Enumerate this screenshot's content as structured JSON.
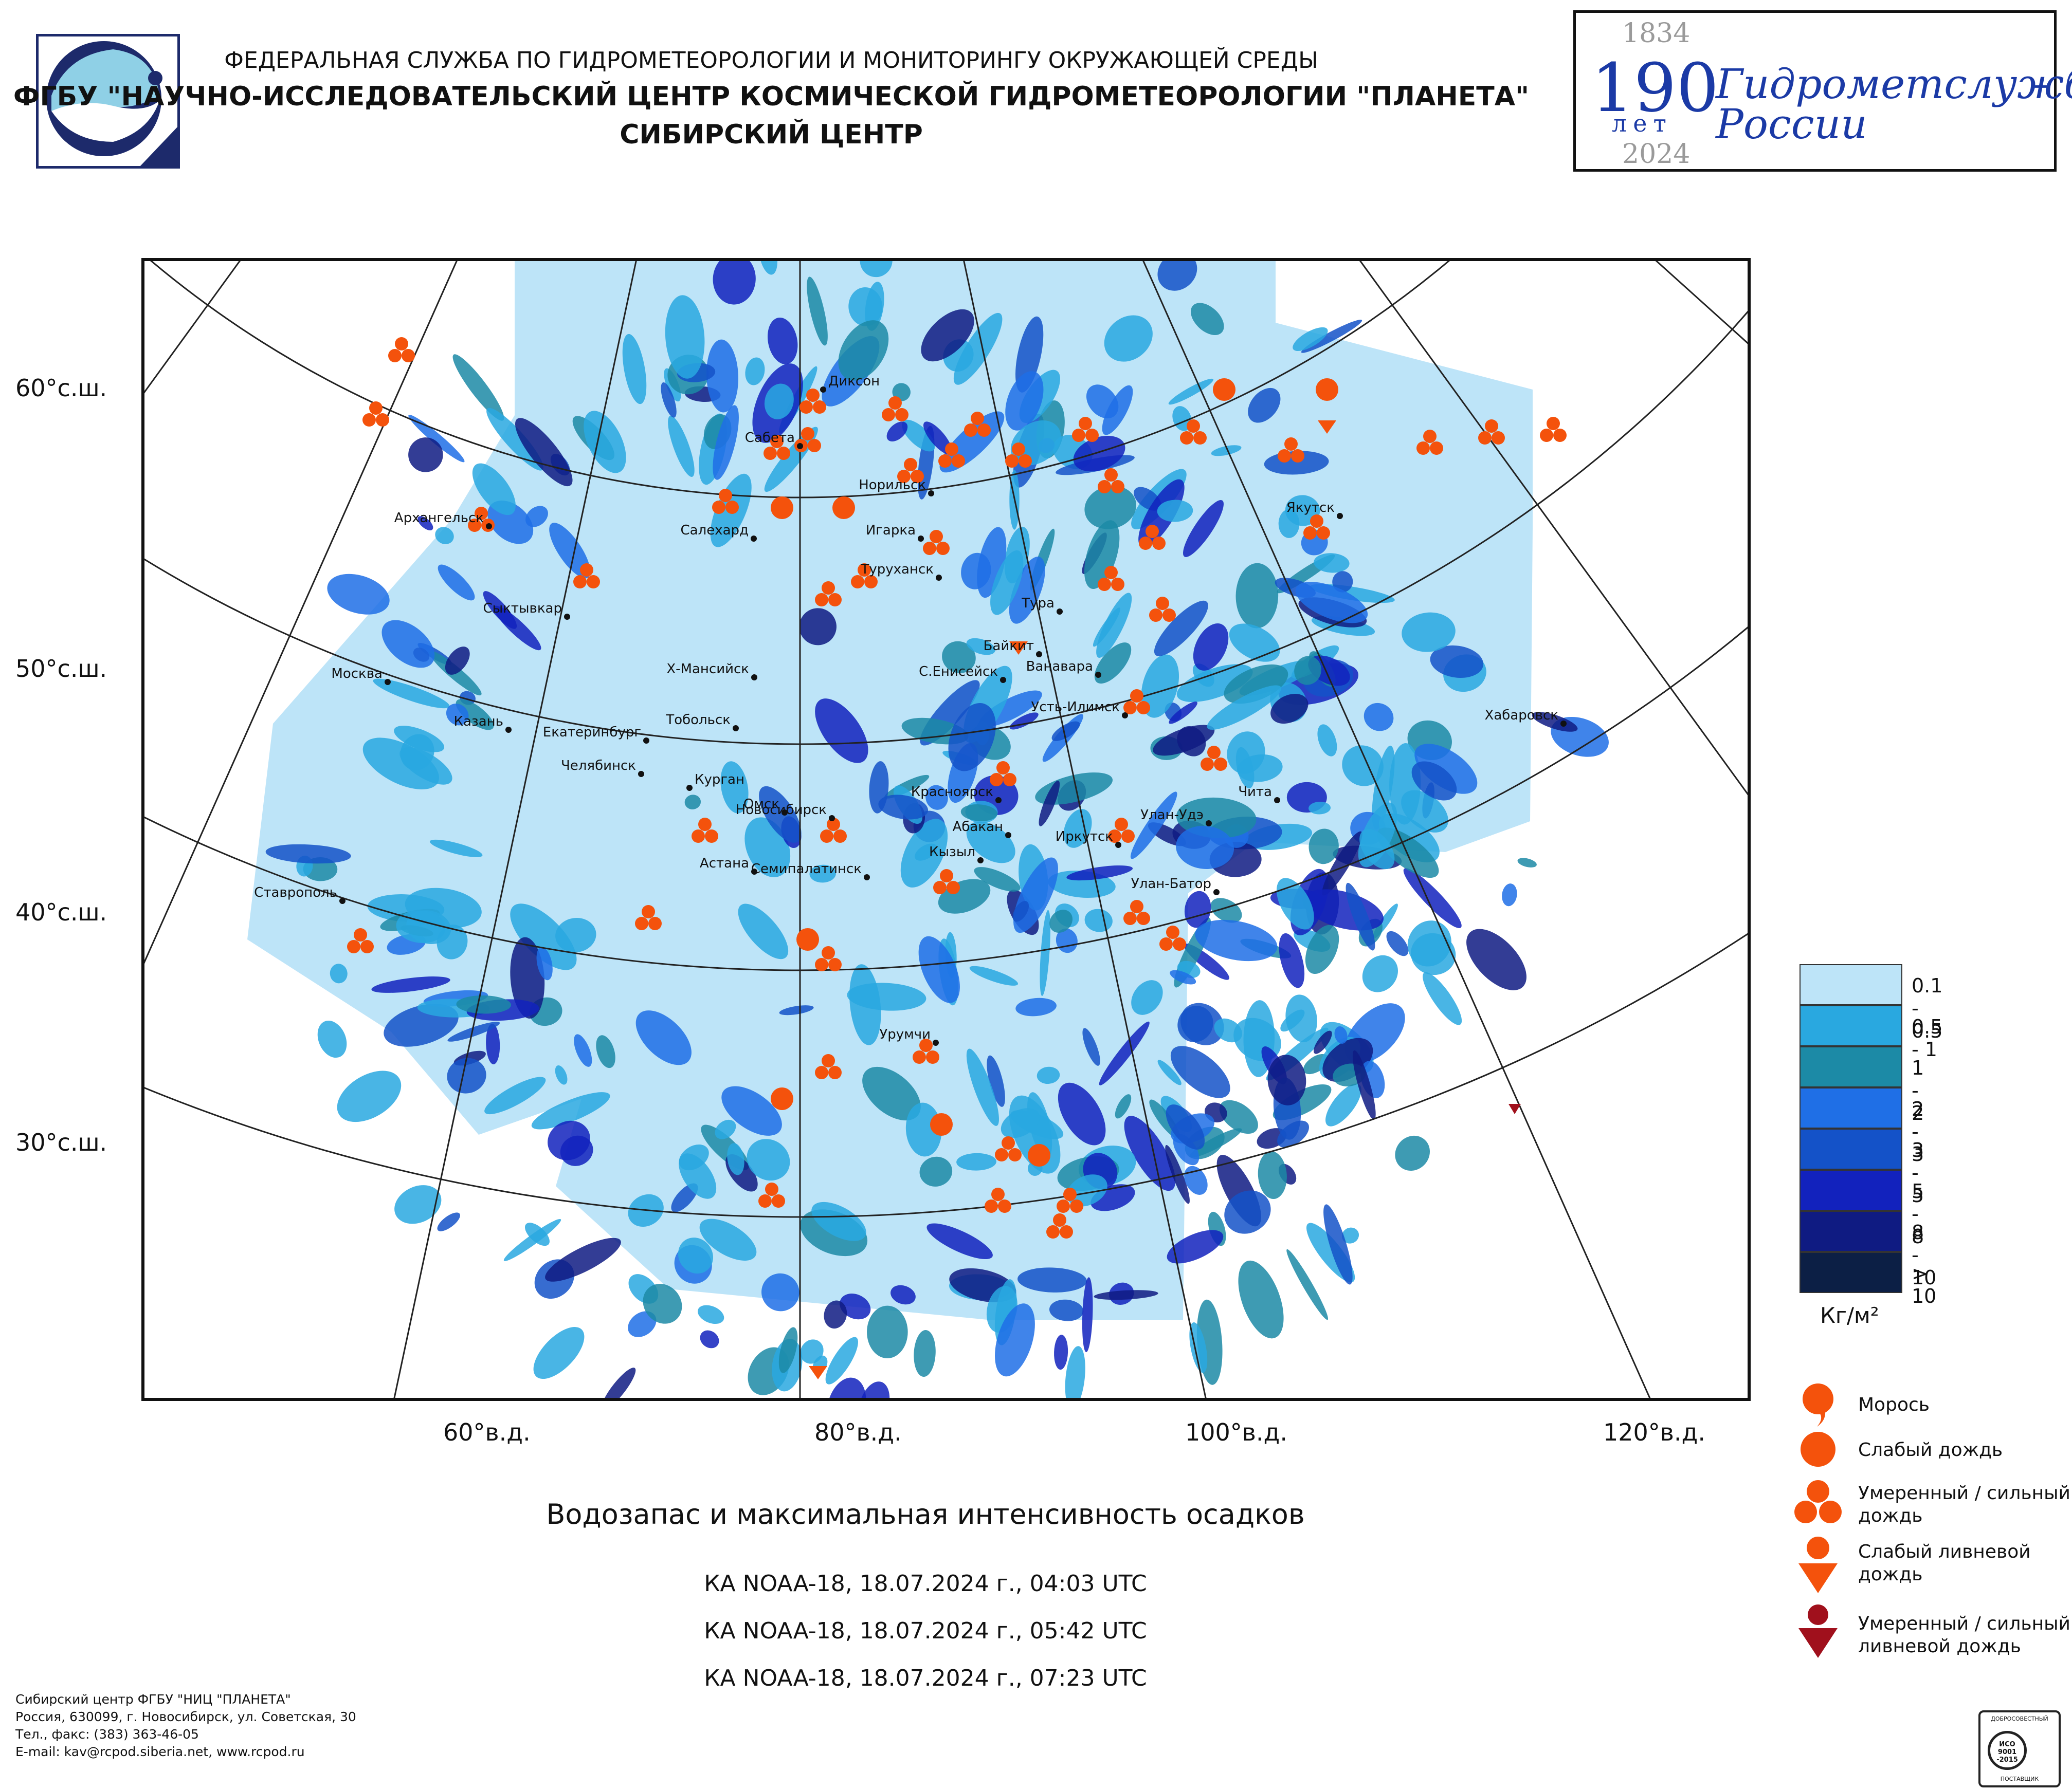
{
  "header": {
    "line1": "ФЕДЕРАЛЬНАЯ СЛУЖБА ПО ГИДРОМЕТЕОРОЛОГИИ И МОНИТОРИНГУ ОКРУЖАЮЩЕЙ СРЕДЫ",
    "line2": "ФГБУ \"НАУЧНО-ИССЛЕДОВАТЕЛЬСКИЙ ЦЕНТР КОСМИЧЕСКОЙ ГИДРОМЕТЕОРОЛОГИИ \"ПЛАНЕТА\"",
    "line3": "СИБИРСКИЙ ЦЕНТР"
  },
  "jubilee": {
    "year_start": "1834",
    "number": "190",
    "years_word": "лет",
    "year_end": "2024",
    "text_line1": "Гидрометслужбе",
    "text_line2": "России"
  },
  "axes": {
    "lat_labels": [
      "60°с.ш.",
      "50°с.ш.",
      "40°с.ш.",
      "30°с.ш."
    ],
    "lon_labels": [
      "60°в.д.",
      "80°в.д.",
      "100°в.д.",
      "120°в.д."
    ]
  },
  "cities": [
    "Диксон",
    "Сабета",
    "Норильск",
    "Игарка",
    "Салехард",
    "Туруханск",
    "Архангельск",
    "Тура",
    "Якутск",
    "Сыктывкар",
    "Байкит",
    "Ванавара",
    "Х-Мансийск",
    "Москва",
    "С.Енисейск",
    "Усть-Илимск",
    "Хабаровск",
    "Тобольск",
    "Казань",
    "Екатеринбург",
    "Челябинск",
    "Курган",
    "Красноярск",
    "Чита",
    "Омск",
    "Новосибирск",
    "Улан-Удэ",
    "Абакан",
    "Иркутск",
    "Кызыл",
    "Астана",
    "Семипалатинск",
    "Улан-Батор",
    "Ставрополь",
    "Урумчи"
  ],
  "legend": {
    "classes": [
      {
        "label": "0.1 - 0.5",
        "color": "#bde4f8"
      },
      {
        "label": "0.5 - 1",
        "color": "#29a8e0"
      },
      {
        "label": "1 - 2",
        "color": "#1c8aa6"
      },
      {
        "label": "2 - 3",
        "color": "#1f6fe6"
      },
      {
        "label": "3 - 5",
        "color": "#1452c8"
      },
      {
        "label": "5 - 8",
        "color": "#1222bd"
      },
      {
        "label": "8 - 10",
        "color": "#0f1b82"
      },
      {
        "label": "> 10",
        "color": "#0c1f45"
      }
    ],
    "unit": "Кг/м²",
    "symbols": [
      {
        "name": "drizzle",
        "label": "Морось"
      },
      {
        "name": "light-rain",
        "label": "Слабый дождь"
      },
      {
        "name": "moderate-rain",
        "label_line1": "Умеренный / сильный",
        "label_line2": "дождь"
      },
      {
        "name": "light-shower",
        "label_line1": "Слабый ливневой",
        "label_line2": "дождь"
      },
      {
        "name": "heavy-shower",
        "label_line1": "Умеренный / сильный",
        "label_line2": "ливневой дождь"
      }
    ],
    "symbol_colors": {
      "rain": "#f4520c",
      "shower_heavy": "#a0101c"
    }
  },
  "title": "Водозапас и максимальная интенсивность осадков",
  "passes": [
    "КА NOAA-18, 18.07.2024 г., 04:03 UTC",
    "КА NOAA-18, 18.07.2024 г., 05:42 UTC",
    "КА NOAA-18, 18.07.2024 г., 07:23 UTC"
  ],
  "footer": {
    "line1": "Сибирский центр ФГБУ \"НИЦ \"ПЛАНЕТА\"",
    "line2": "Россия, 630099, г. Новосибирск, ул. Советская, 30",
    "line3": "Тел., факс: (383) 363-46-05",
    "line4": "E-mail: kav@rcpod.siberia.net, www.rcpod.ru"
  },
  "iso_badge": {
    "top": "ДОБРОСОВЕСТНЫЙ",
    "middle": "ИСО 9001 -2015",
    "bottom": "ПОСТАВЩИК"
  }
}
